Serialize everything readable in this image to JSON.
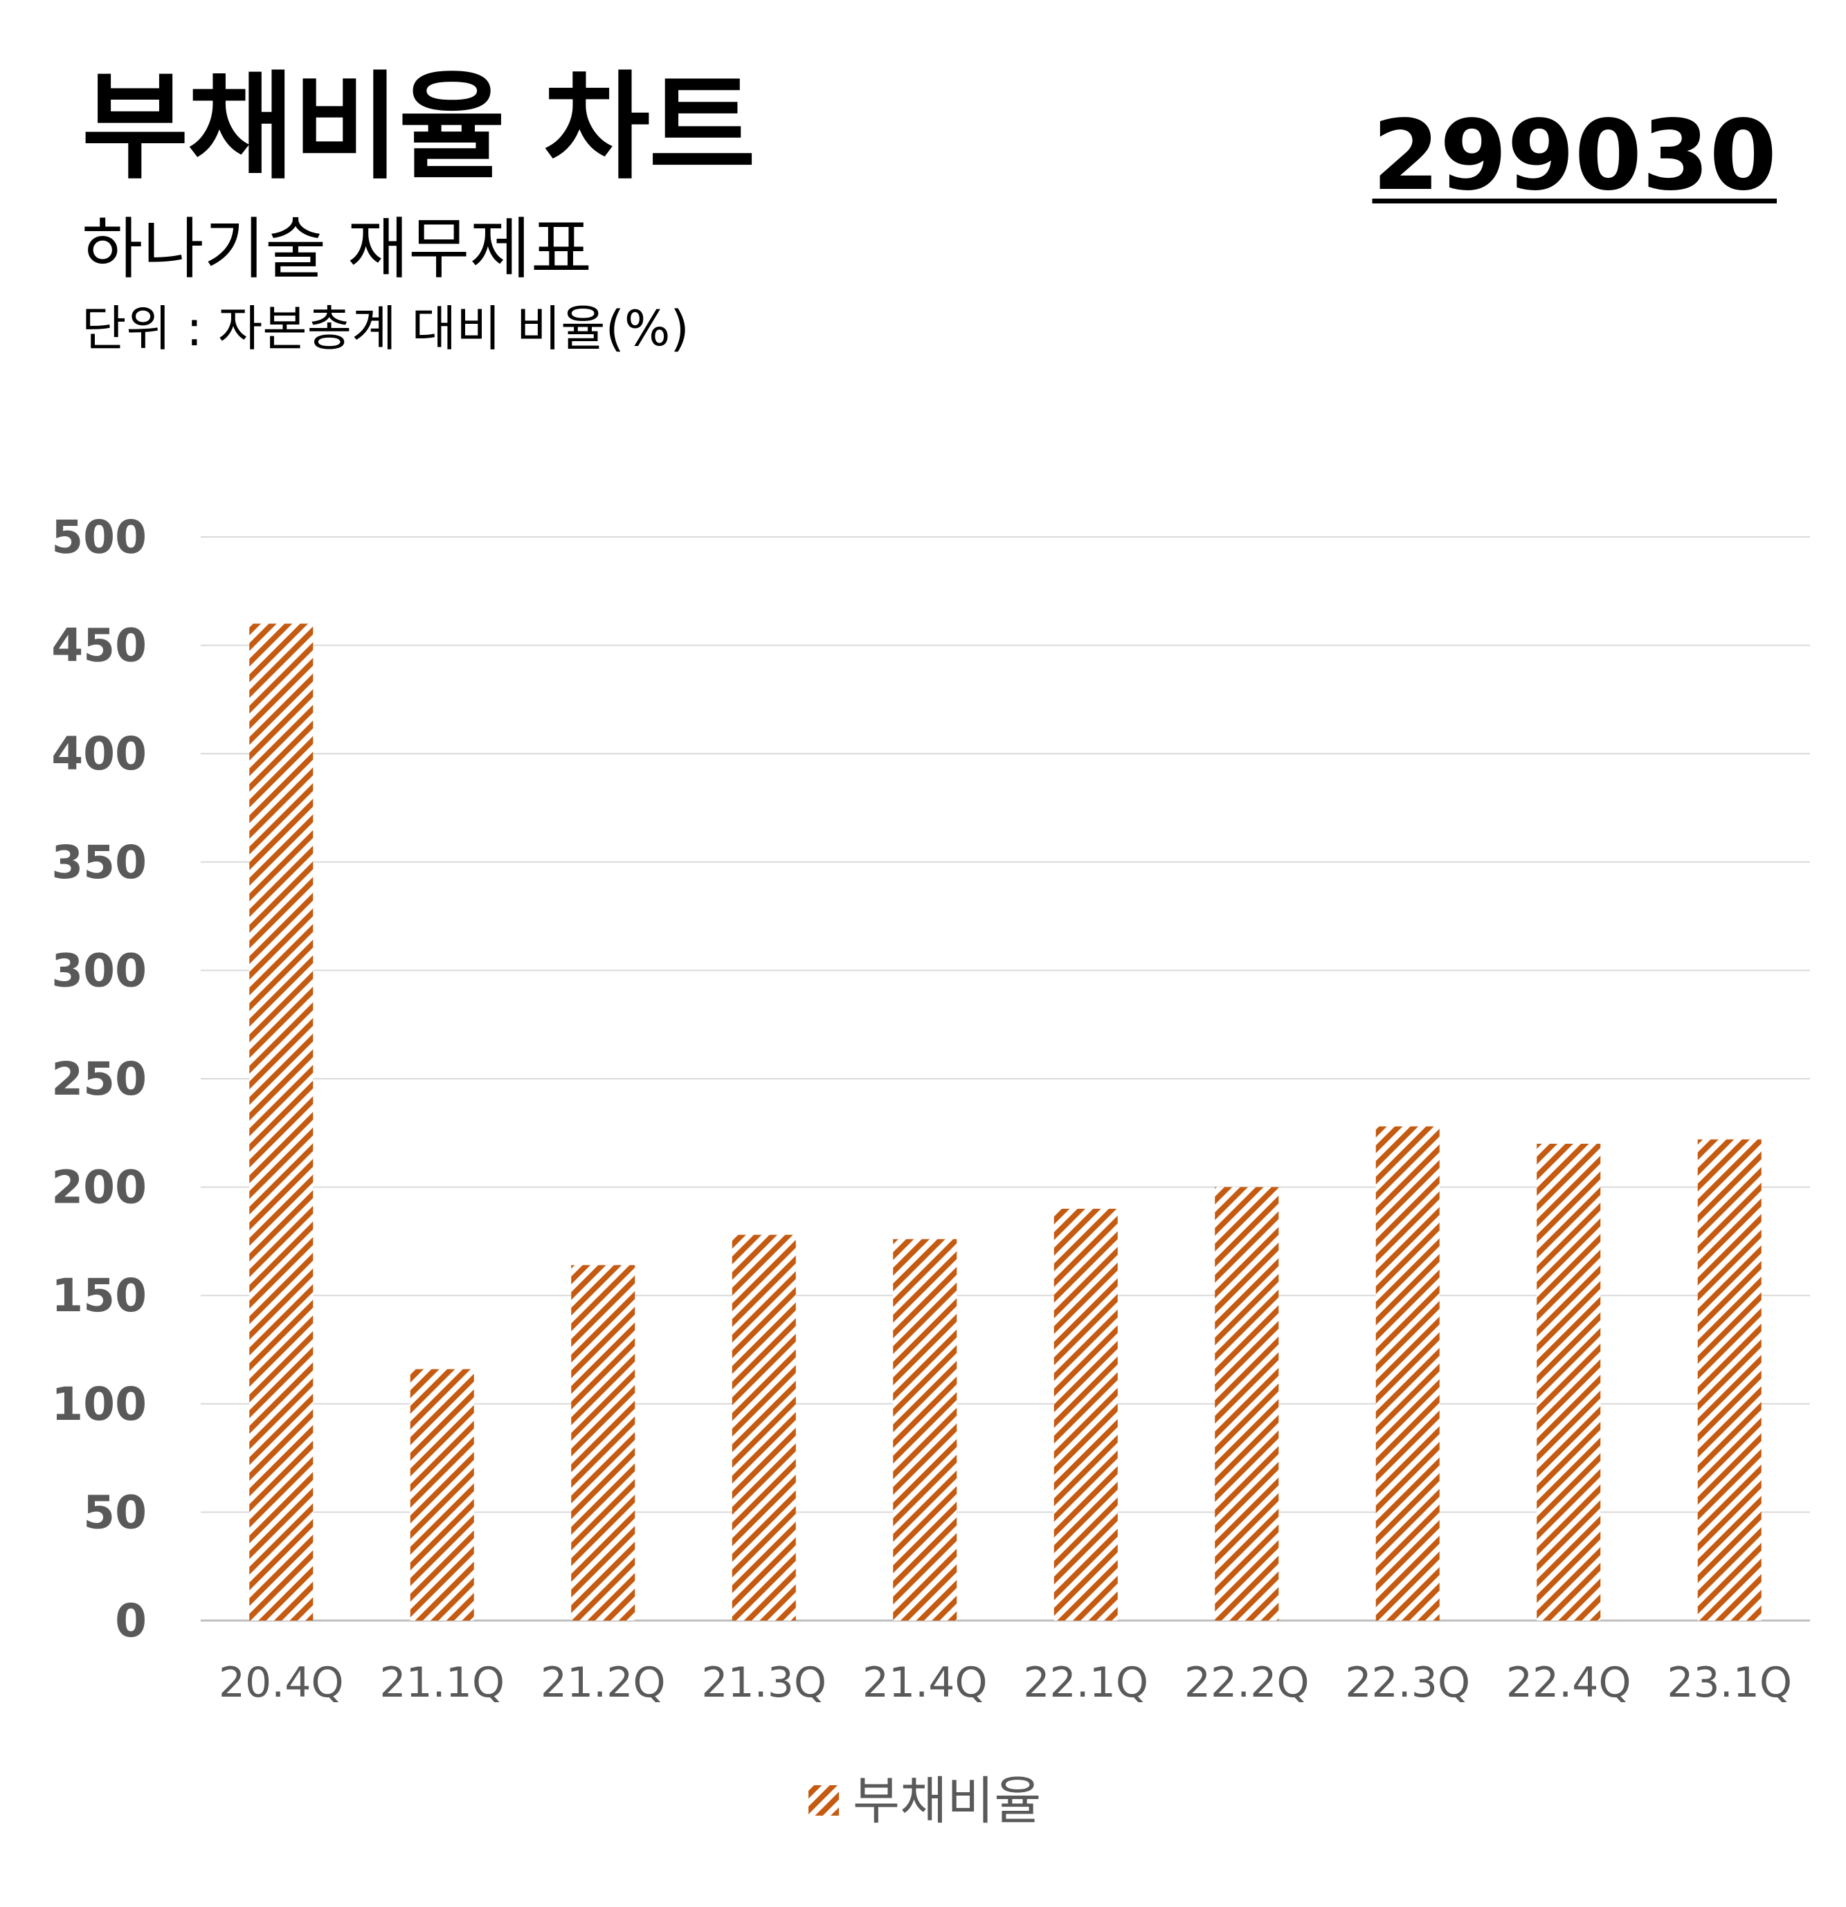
{
  "header": {
    "title": "부채비율 차트",
    "subtitle": "하나기술 재무제표",
    "unit": "단위 : 자본총계 대비 비율(%)",
    "code": "299030"
  },
  "chart_data": {
    "type": "bar",
    "categories": [
      "20.4Q",
      "21.1Q",
      "21.2Q",
      "21.3Q",
      "21.4Q",
      "22.1Q",
      "22.2Q",
      "22.3Q",
      "22.4Q",
      "23.1Q"
    ],
    "series": [
      {
        "name": "부채비율",
        "values": [
          460,
          116,
          164,
          178,
          176,
          190,
          200,
          228,
          220,
          222
        ],
        "color": "#C55A11"
      }
    ],
    "ylim": [
      0,
      500
    ],
    "yticks": [
      0,
      50,
      100,
      150,
      200,
      250,
      300,
      350,
      400,
      450,
      500
    ],
    "grid": true,
    "legend": "bottom-center",
    "fill_pattern": "diagonal-hatch"
  }
}
